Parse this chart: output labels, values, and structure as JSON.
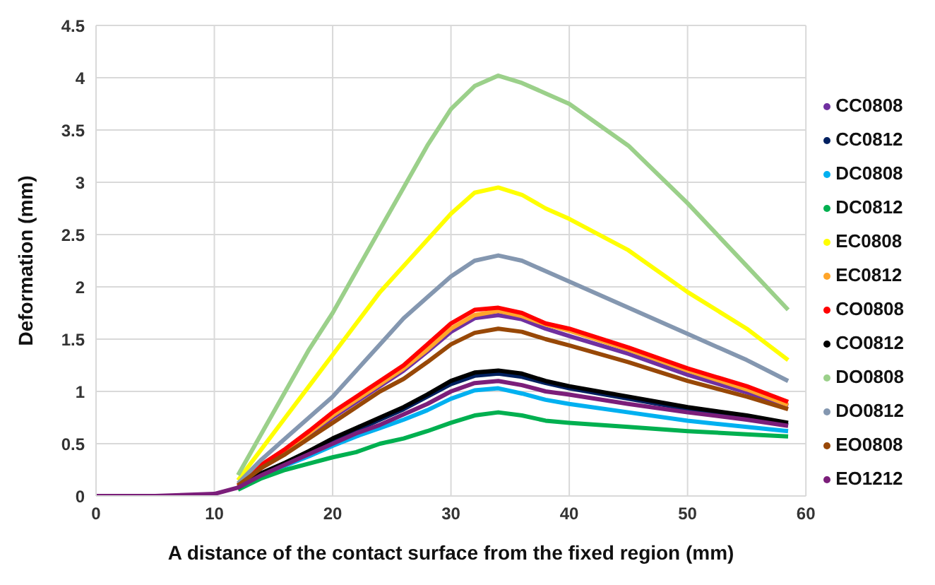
{
  "chart_data": {
    "type": "line",
    "xlabel": "A distance of the contact surface from the fixed region (mm)",
    "ylabel": "Deformation (mm)",
    "x": [
      0,
      5,
      10,
      12,
      14,
      16,
      18,
      20,
      22,
      24,
      26,
      28,
      30,
      32,
      34,
      36,
      38,
      40,
      45,
      50,
      55,
      58.5
    ],
    "xlim": [
      0,
      60
    ],
    "xticks": [
      0,
      10,
      20,
      30,
      40,
      50,
      60
    ],
    "ylim": [
      0,
      4.5
    ],
    "yticks": [
      0,
      0.5,
      1,
      1.5,
      2,
      2.5,
      3,
      3.5,
      4,
      4.5
    ],
    "grid": true,
    "legend": "right",
    "marker": "none",
    "line_style": "solid",
    "series": [
      {
        "name": "CC0808",
        "color": "#7030a0",
        "values": [
          null,
          null,
          null,
          0.1,
          0.27,
          0.42,
          0.58,
          0.75,
          0.9,
          1.05,
          1.2,
          1.38,
          1.57,
          1.7,
          1.73,
          1.69,
          1.6,
          1.53,
          1.36,
          1.16,
          0.99,
          0.86
        ]
      },
      {
        "name": "CC0812",
        "color": "#002060",
        "values": [
          null,
          null,
          null,
          0.08,
          0.21,
          0.31,
          0.42,
          0.53,
          0.63,
          0.73,
          0.83,
          0.95,
          1.07,
          1.15,
          1.17,
          1.14,
          1.08,
          1.03,
          0.93,
          0.83,
          0.75,
          0.68
        ]
      },
      {
        "name": "DC0808",
        "color": "#00b0f0",
        "values": [
          null,
          null,
          null,
          0.07,
          0.2,
          0.29,
          0.38,
          0.48,
          0.57,
          0.65,
          0.73,
          0.82,
          0.93,
          1.01,
          1.03,
          0.98,
          0.92,
          0.88,
          0.8,
          0.72,
          0.66,
          0.62
        ]
      },
      {
        "name": "DC0812",
        "color": "#00b050",
        "values": [
          null,
          null,
          null,
          0.06,
          0.17,
          0.25,
          0.31,
          0.37,
          0.42,
          0.5,
          0.55,
          0.62,
          0.7,
          0.77,
          0.8,
          0.77,
          0.72,
          0.7,
          0.66,
          0.62,
          0.59,
          0.57
        ]
      },
      {
        "name": "EC0808",
        "color": "#ffff00",
        "values": [
          null,
          null,
          null,
          0.15,
          0.45,
          0.75,
          1.05,
          1.35,
          1.65,
          1.95,
          2.2,
          2.45,
          2.7,
          2.9,
          2.95,
          2.88,
          2.75,
          2.65,
          2.35,
          1.95,
          1.6,
          1.3
        ]
      },
      {
        "name": "EC0812",
        "color": "#ffa52a",
        "values": [
          null,
          null,
          null,
          0.1,
          0.28,
          0.43,
          0.6,
          0.77,
          0.92,
          1.07,
          1.22,
          1.4,
          1.6,
          1.73,
          1.77,
          1.72,
          1.64,
          1.58,
          1.4,
          1.2,
          1.02,
          0.87
        ]
      },
      {
        "name": "CO0808",
        "color": "#ff0000",
        "values": [
          null,
          null,
          null,
          0.1,
          0.3,
          0.45,
          0.62,
          0.8,
          0.95,
          1.1,
          1.25,
          1.45,
          1.65,
          1.78,
          1.8,
          1.75,
          1.65,
          1.6,
          1.42,
          1.22,
          1.05,
          0.9
        ]
      },
      {
        "name": "CO0812",
        "color": "#000000",
        "values": [
          null,
          null,
          null,
          0.08,
          0.22,
          0.32,
          0.43,
          0.55,
          0.65,
          0.75,
          0.85,
          0.97,
          1.1,
          1.18,
          1.2,
          1.17,
          1.1,
          1.05,
          0.95,
          0.85,
          0.77,
          0.7
        ]
      },
      {
        "name": "DO0808",
        "color": "#9bd08a",
        "values": [
          null,
          null,
          null,
          0.2,
          0.6,
          1.0,
          1.4,
          1.75,
          2.15,
          2.55,
          2.95,
          3.35,
          3.7,
          3.92,
          4.02,
          3.95,
          3.85,
          3.75,
          3.35,
          2.8,
          2.2,
          1.78
        ]
      },
      {
        "name": "DO0812",
        "color": "#8497b0",
        "values": [
          null,
          null,
          null,
          0.12,
          0.35,
          0.55,
          0.75,
          0.95,
          1.2,
          1.45,
          1.7,
          1.9,
          2.1,
          2.25,
          2.3,
          2.25,
          2.15,
          2.05,
          1.8,
          1.55,
          1.3,
          1.1
        ]
      },
      {
        "name": "EO0808",
        "color": "#984807",
        "values": [
          null,
          null,
          null,
          0.1,
          0.27,
          0.4,
          0.55,
          0.7,
          0.85,
          1.0,
          1.12,
          1.28,
          1.45,
          1.56,
          1.6,
          1.57,
          1.5,
          1.44,
          1.28,
          1.1,
          0.95,
          0.83
        ]
      },
      {
        "name": "EO1212",
        "color": "#7b1e7a",
        "values": [
          0,
          0,
          0.02,
          0.08,
          0.2,
          0.3,
          0.4,
          0.5,
          0.6,
          0.68,
          0.78,
          0.88,
          1.0,
          1.08,
          1.1,
          1.06,
          1.0,
          0.97,
          0.88,
          0.8,
          0.73,
          0.67
        ]
      }
    ]
  }
}
